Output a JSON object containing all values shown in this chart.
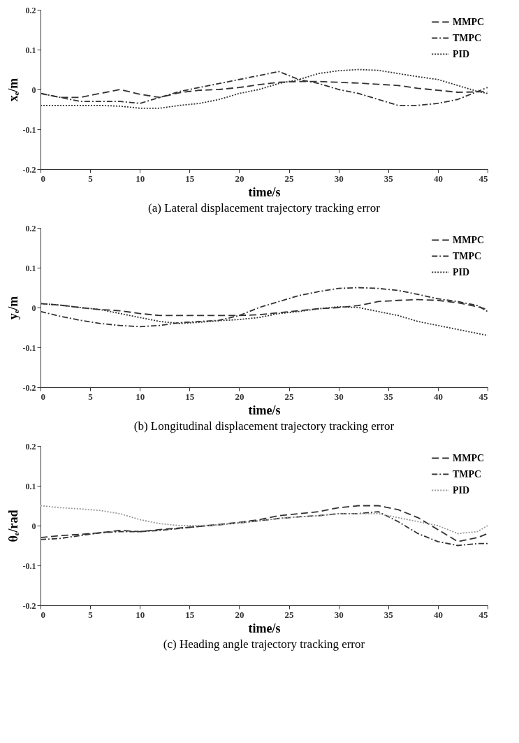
{
  "chart_data": [
    {
      "type": "line",
      "title": "(a) Lateral displacement trajectory tracking error",
      "xlabel": "time/s",
      "ylabel": "xₑ/m",
      "xlim": [
        0,
        45
      ],
      "xticks": [
        0,
        5,
        10,
        15,
        20,
        25,
        30,
        35,
        40,
        45
      ],
      "ylim": [
        -0.2,
        0.2
      ],
      "yticks": [
        -0.2,
        -0.1,
        0,
        0.1,
        0.2
      ],
      "grid": false,
      "legend": "top right",
      "marker": "none",
      "x": [
        0,
        2,
        4,
        6,
        8,
        10,
        12,
        14,
        16,
        18,
        20,
        22,
        24,
        26,
        28,
        30,
        32,
        34,
        36,
        38,
        40,
        42,
        44,
        45
      ],
      "series": [
        {
          "name": "MMPC",
          "color": "#333333",
          "line_style": "dashed",
          "values": [
            -0.01,
            -0.02,
            -0.02,
            -0.01,
            0,
            -0.012,
            -0.02,
            -0.008,
            -0.002,
            0,
            0.005,
            0.012,
            0.018,
            0.02,
            0.02,
            0.018,
            0.016,
            0.013,
            0.01,
            0.003,
            -0.002,
            -0.007,
            -0.006,
            -0.005
          ]
        },
        {
          "name": "TMPC",
          "color": "#333333",
          "line_style": "dashdot",
          "values": [
            -0.01,
            -0.02,
            -0.03,
            -0.03,
            -0.03,
            -0.035,
            -0.02,
            -0.005,
            0.005,
            0.015,
            0.025,
            0.035,
            0.045,
            0.025,
            0.015,
            0,
            -0.01,
            -0.025,
            -0.04,
            -0.04,
            -0.035,
            -0.025,
            -0.005,
            0.005
          ]
        },
        {
          "name": "PID",
          "color": "#333333",
          "line_style": "dotted",
          "values": [
            -0.04,
            -0.04,
            -0.04,
            -0.04,
            -0.042,
            -0.047,
            -0.047,
            -0.04,
            -0.035,
            -0.025,
            -0.01,
            0,
            0.015,
            0.025,
            0.04,
            0.047,
            0.05,
            0.048,
            0.04,
            0.032,
            0.025,
            0.01,
            -0.005,
            -0.01
          ]
        }
      ]
    },
    {
      "type": "line",
      "title": "(b) Longitudinal displacement trajectory tracking error",
      "xlabel": "time/s",
      "ylabel": "yₑ/m",
      "xlim": [
        0,
        45
      ],
      "xticks": [
        0,
        5,
        10,
        15,
        20,
        25,
        30,
        35,
        40,
        45
      ],
      "ylim": [
        -0.2,
        0.2
      ],
      "yticks": [
        -0.2,
        -0.1,
        0,
        0.1,
        0.2
      ],
      "grid": false,
      "legend": "top right",
      "marker": "none",
      "x": [
        0,
        2,
        4,
        6,
        8,
        10,
        12,
        14,
        16,
        18,
        20,
        22,
        24,
        26,
        28,
        30,
        32,
        34,
        36,
        38,
        40,
        42,
        44,
        45
      ],
      "series": [
        {
          "name": "MMPC",
          "color": "#333333",
          "line_style": "dashed",
          "values": [
            0.01,
            0.006,
            0,
            -0.005,
            -0.008,
            -0.015,
            -0.02,
            -0.02,
            -0.02,
            -0.02,
            -0.02,
            -0.018,
            -0.013,
            -0.008,
            -0.003,
            0,
            0.005,
            0.015,
            0.018,
            0.02,
            0.018,
            0.012,
            0.002,
            -0.005
          ]
        },
        {
          "name": "TMPC",
          "color": "#333333",
          "line_style": "dashdot",
          "values": [
            -0.01,
            -0.022,
            -0.032,
            -0.04,
            -0.045,
            -0.048,
            -0.045,
            -0.038,
            -0.035,
            -0.032,
            -0.02,
            0,
            0.015,
            0.03,
            0.04,
            0.048,
            0.05,
            0.048,
            0.043,
            0.033,
            0.022,
            0.015,
            0.005,
            -0.01
          ]
        },
        {
          "name": "PID",
          "color": "#333333",
          "line_style": "dotted",
          "values": [
            0.01,
            0.006,
            0,
            -0.005,
            -0.015,
            -0.025,
            -0.035,
            -0.04,
            -0.037,
            -0.033,
            -0.03,
            -0.025,
            -0.015,
            -0.01,
            -0.003,
            0.002,
            0,
            -0.01,
            -0.02,
            -0.035,
            -0.045,
            -0.055,
            -0.065,
            -0.07
          ]
        }
      ]
    },
    {
      "type": "line",
      "title": "(c) Heading angle trajectory tracking error",
      "xlabel": "time/s",
      "ylabel": "θₑ/rad",
      "xlim": [
        0,
        45
      ],
      "xticks": [
        0,
        5,
        10,
        15,
        20,
        25,
        30,
        35,
        40,
        45
      ],
      "ylim": [
        -0.2,
        0.2
      ],
      "yticks": [
        -0.2,
        -0.1,
        0,
        0.1,
        0.2
      ],
      "grid": false,
      "legend": "top right",
      "marker": "none",
      "x": [
        0,
        2,
        4,
        6,
        8,
        10,
        12,
        14,
        16,
        18,
        20,
        22,
        24,
        26,
        28,
        30,
        32,
        34,
        36,
        38,
        40,
        42,
        44,
        45
      ],
      "series": [
        {
          "name": "MMPC",
          "color": "#333333",
          "line_style": "dashed",
          "values": [
            -0.03,
            -0.025,
            -0.022,
            -0.018,
            -0.012,
            -0.015,
            -0.01,
            -0.006,
            -0.002,
            0.003,
            0.008,
            0.015,
            0.025,
            0.03,
            0.035,
            0.045,
            0.05,
            0.05,
            0.04,
            0.02,
            -0.01,
            -0.04,
            -0.03,
            -0.02
          ]
        },
        {
          "name": "TMPC",
          "color": "#333333",
          "line_style": "dashdot",
          "values": [
            -0.035,
            -0.032,
            -0.025,
            -0.018,
            -0.015,
            -0.015,
            -0.012,
            -0.007,
            -0.002,
            0.002,
            0.007,
            0.012,
            0.018,
            0.022,
            0.025,
            0.03,
            0.03,
            0.035,
            0.01,
            -0.02,
            -0.04,
            -0.05,
            -0.045,
            -0.045
          ]
        },
        {
          "name": "PID",
          "color": "#999999",
          "line_style": "dotted",
          "values": [
            0.05,
            0.045,
            0.042,
            0.038,
            0.03,
            0.015,
            0.005,
            0,
            0,
            0.002,
            0.007,
            0.012,
            0.018,
            0.022,
            0.025,
            0.03,
            0.03,
            0.03,
            0.02,
            0.01,
            0,
            -0.02,
            -0.015,
            0
          ]
        }
      ]
    }
  ]
}
